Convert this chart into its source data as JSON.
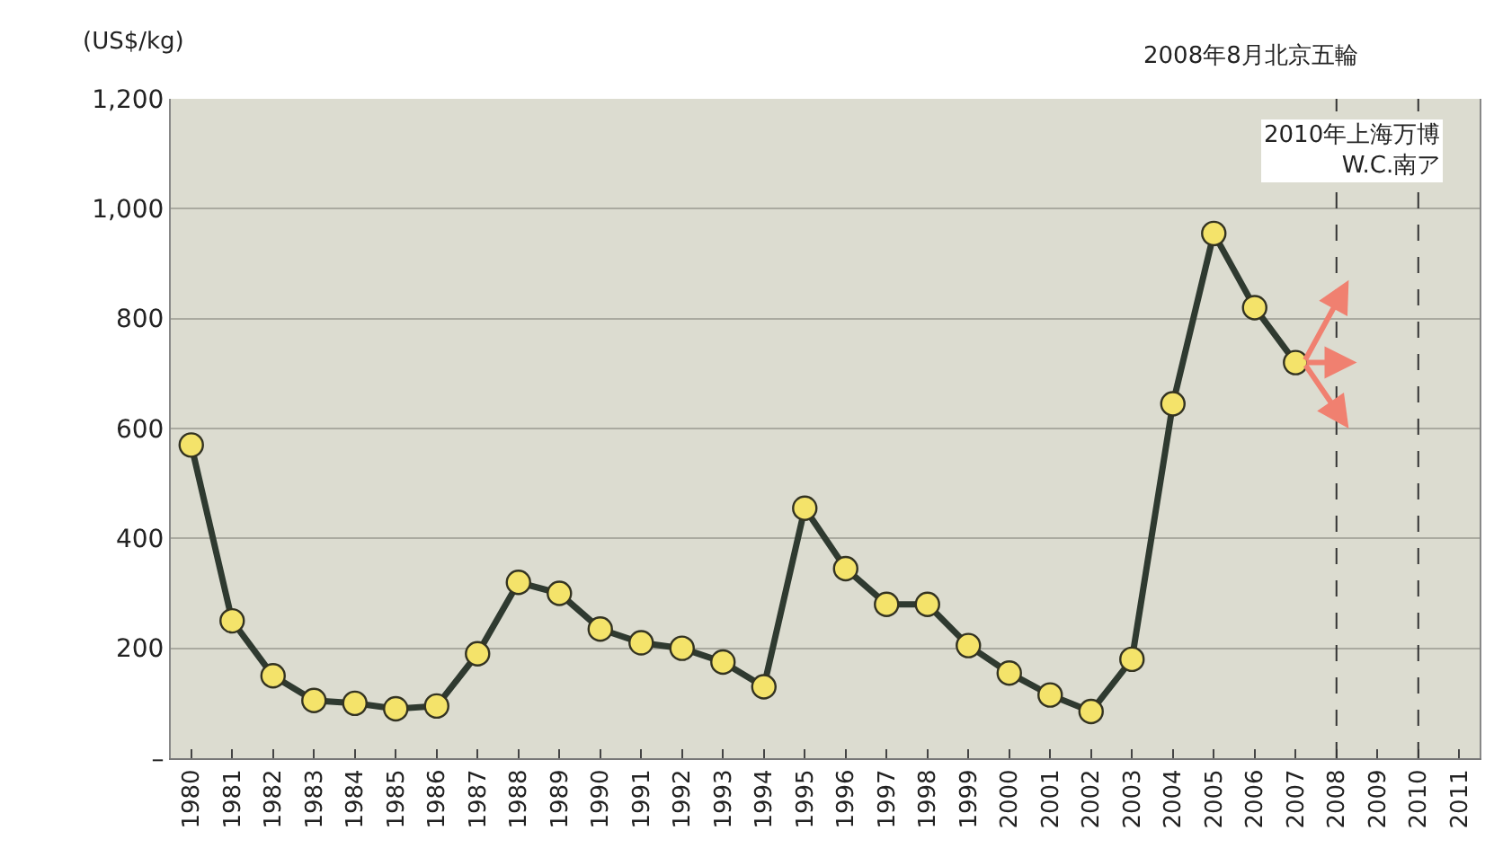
{
  "chart_data": {
    "type": "line",
    "ylabel": "(US$/kg)",
    "categories": [
      "1980",
      "1981",
      "1982",
      "1983",
      "1984",
      "1985",
      "1986",
      "1987",
      "1988",
      "1989",
      "1990",
      "1991",
      "1992",
      "1993",
      "1994",
      "1995",
      "1996",
      "1997",
      "1998",
      "1999",
      "2000",
      "2001",
      "2002",
      "2003",
      "2004",
      "2005",
      "2006",
      "2007",
      "2008",
      "2009",
      "2010",
      "2011"
    ],
    "series": [
      {
        "color": "#2f3a30",
        "values": [
          570,
          250,
          150,
          105,
          100,
          90,
          95,
          190,
          320,
          300,
          235,
          210,
          200,
          175,
          130,
          455,
          345,
          280,
          280,
          205,
          155,
          115,
          85,
          180,
          645,
          955,
          820,
          720,
          null,
          null,
          null,
          null
        ]
      }
    ],
    "ylim": [
      0,
      1200
    ],
    "yticks": [
      {
        "value": 0,
        "label": "–"
      },
      {
        "value": 200,
        "label": "200"
      },
      {
        "value": 400,
        "label": "400"
      },
      {
        "value": 600,
        "label": "600"
      },
      {
        "value": 800,
        "label": "800"
      },
      {
        "value": 1000,
        "label": "1,000"
      },
      {
        "value": 1200,
        "label": "1,200"
      }
    ],
    "ref_lines": [
      {
        "axis": "x",
        "value": "2008",
        "label": "2008年8月北京五輪",
        "color": "#333333",
        "line_style": "dashed"
      },
      {
        "axis": "x",
        "value": "2010",
        "label": "2010年上海万博\nW.C.南ア",
        "color": "#333333",
        "line_style": "dashed"
      }
    ],
    "grid": "y",
    "marker": "circle",
    "line_style": "solid"
  }
}
